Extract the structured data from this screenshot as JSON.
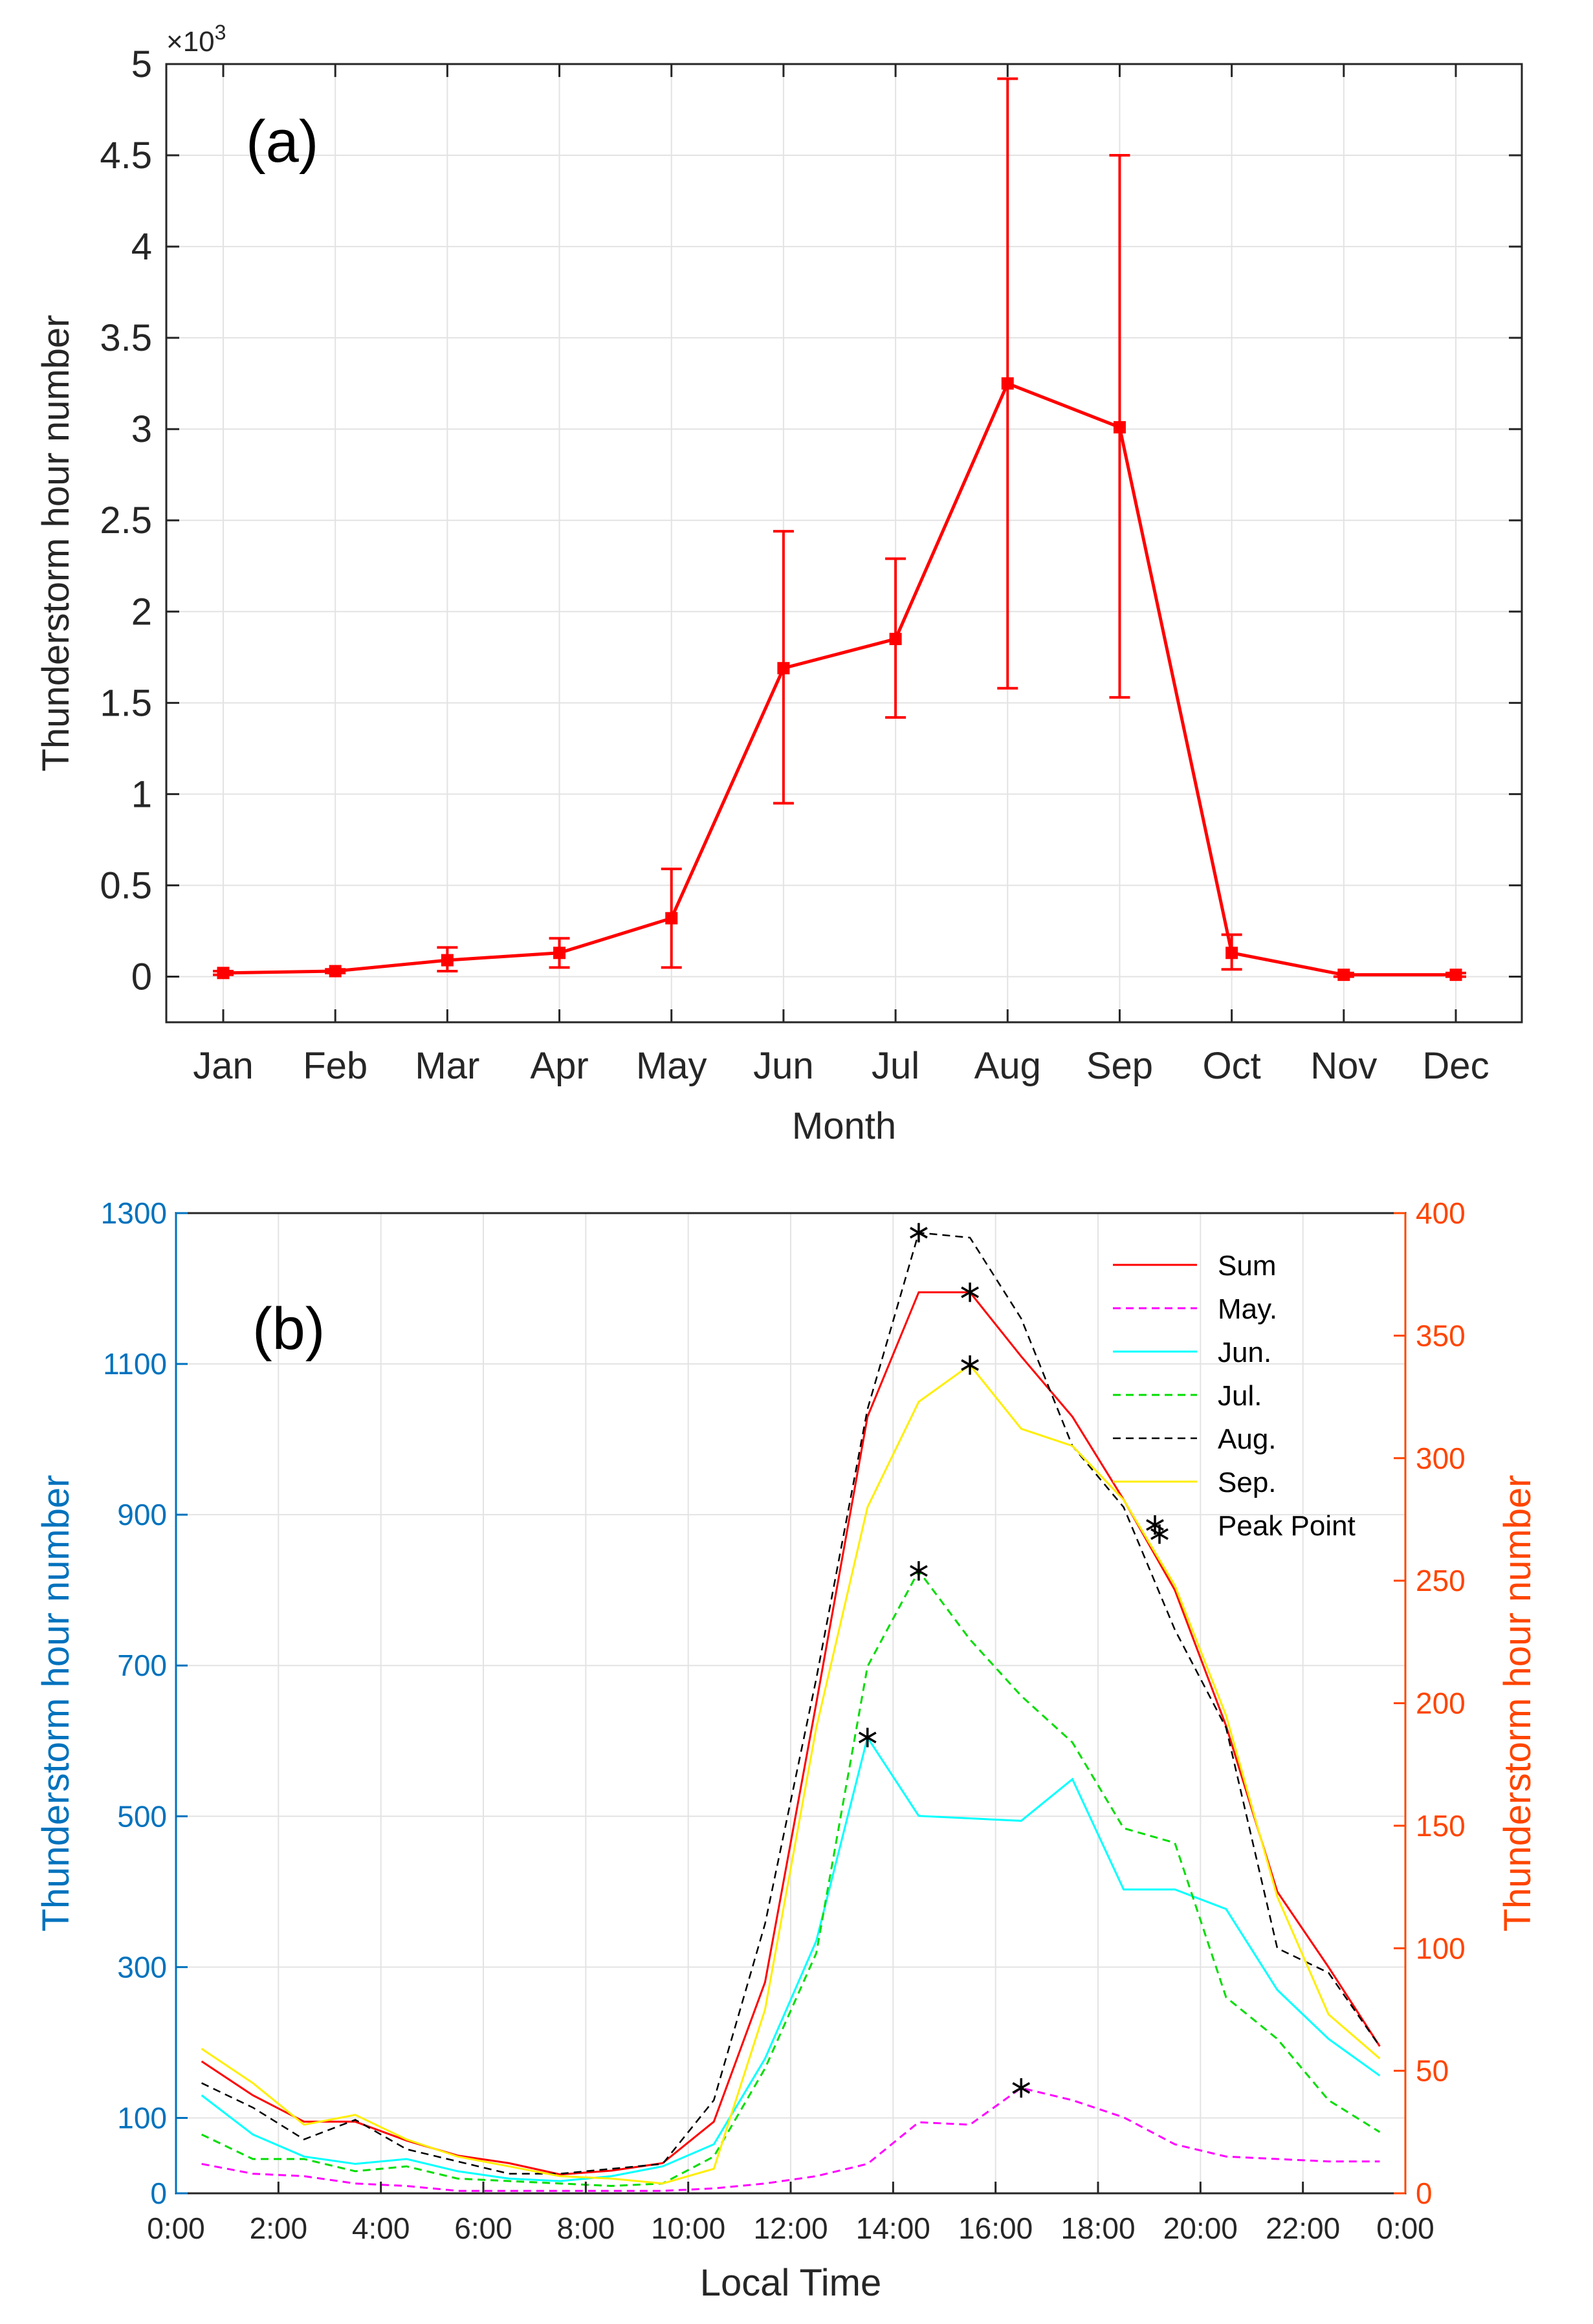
{
  "chart_data": [
    {
      "type": "line",
      "panel_label": "(a)",
      "xlabel": "Month",
      "ylabel": "Thunderstorm hour number",
      "y_multiplier_label": "×10",
      "y_multiplier_exp": "3",
      "categories": [
        "Jan",
        "Feb",
        "Mar",
        "Apr",
        "May",
        "Jun",
        "Jul",
        "Aug",
        "Sep",
        "Oct",
        "Nov",
        "Dec"
      ],
      "ylim": [
        -0.25,
        5
      ],
      "yticks": [
        0,
        0.5,
        1,
        1.5,
        2,
        2.5,
        3,
        3.5,
        4,
        4.5,
        5
      ],
      "ytick_labels": [
        "0",
        "0.5",
        "1",
        "1.5",
        "2",
        "2.5",
        "3",
        "3.5",
        "4",
        "4.5",
        "5"
      ],
      "grid": true,
      "series": [
        {
          "color": "#ff0000",
          "marker": "square",
          "values": [
            0.02,
            0.03,
            0.09,
            0.13,
            0.32,
            1.69,
            1.85,
            3.25,
            3.01,
            0.13,
            0.01,
            0.01
          ],
          "error_low": [
            0.01,
            0.02,
            0.03,
            0.05,
            0.05,
            0.95,
            1.42,
            1.58,
            1.53,
            0.04,
            0.0,
            0.0
          ],
          "error_high": [
            0.03,
            0.04,
            0.16,
            0.21,
            0.59,
            2.44,
            2.29,
            4.92,
            4.5,
            0.23,
            0.02,
            0.02
          ]
        }
      ]
    },
    {
      "type": "line",
      "panel_label": "(b)",
      "xlabel": "Local Time",
      "ylabel_left": "Thunderstorm hour number",
      "ylabel_right": "Thunderstorm hour number",
      "left_axis_color": "#0072bd",
      "right_axis_color": "#ff4500",
      "xlim": [
        0,
        24
      ],
      "xticks": [
        0,
        2,
        4,
        6,
        8,
        10,
        12,
        14,
        16,
        18,
        20,
        22,
        24
      ],
      "xtick_labels": [
        "0:00",
        "2:00",
        "4:00",
        "6:00",
        "8:00",
        "10:00",
        "12:00",
        "14:00",
        "16:00",
        "18:00",
        "20:00",
        "22:00",
        "0:00"
      ],
      "ylim_left": [
        0,
        1300
      ],
      "yticks_left": [
        0,
        100,
        300,
        500,
        700,
        900,
        1100,
        1300
      ],
      "ytick_labels_left": [
        "0",
        "100",
        "300",
        "500",
        "700",
        "900",
        "1100",
        "1300"
      ],
      "ylim_right": [
        0,
        400
      ],
      "yticks_right": [
        0,
        50,
        100,
        150,
        200,
        250,
        300,
        350,
        400
      ],
      "ytick_labels_right": [
        "0",
        "50",
        "100",
        "150",
        "200",
        "250",
        "300",
        "350",
        "400"
      ],
      "grid": true,
      "legend_position": "top-right",
      "x": [
        0.5,
        1.5,
        2.5,
        3.5,
        4.5,
        5.5,
        6.5,
        7.5,
        8.5,
        9.5,
        10.5,
        11.5,
        12.5,
        13.5,
        14.5,
        15.5,
        16.5,
        17.5,
        18.5,
        19.5,
        20.5,
        21.5,
        22.5,
        23.5
      ],
      "series": [
        {
          "name": "Sum",
          "axis": "left",
          "color": "#ff0000",
          "dash": "solid",
          "width": 3,
          "values": [
            175,
            130,
            95,
            95,
            70,
            50,
            40,
            25,
            30,
            40,
            95,
            280,
            650,
            1030,
            1195,
            1195,
            1110,
            1030,
            920,
            800,
            620,
            400,
            300,
            195
          ]
        },
        {
          "name": "May.",
          "axis": "right",
          "color": "#ff00ff",
          "dash": "dashed",
          "width": 3,
          "values": [
            12,
            8,
            7,
            4,
            3,
            1,
            1,
            1,
            1,
            1,
            2,
            4,
            7,
            12,
            29,
            28,
            43,
            38,
            31,
            20,
            15,
            14,
            13,
            13
          ]
        },
        {
          "name": "Jun.",
          "axis": "right",
          "color": "#00ffff",
          "dash": "solid",
          "width": 3,
          "values": [
            40,
            24,
            15,
            12,
            14,
            9,
            6,
            5,
            7,
            11,
            20,
            55,
            103,
            186,
            154,
            153,
            152,
            169,
            124,
            124,
            116,
            83,
            63,
            48
          ]
        },
        {
          "name": "Jul.",
          "axis": "right",
          "color": "#00dd00",
          "dash": "dashed",
          "width": 3,
          "values": [
            24,
            14,
            14,
            9,
            11,
            6,
            5,
            4,
            3,
            4,
            15,
            51,
            98,
            215,
            254,
            226,
            203,
            184,
            149,
            143,
            80,
            63,
            38,
            25
          ]
        },
        {
          "name": "Aug.",
          "axis": "right",
          "color": "#000000",
          "dash": "dashed",
          "width": 2.5,
          "values": [
            45,
            35,
            22,
            30,
            18,
            13,
            8,
            8,
            10,
            12,
            38,
            110,
            210,
            320,
            392,
            390,
            357,
            305,
            280,
            230,
            190,
            100,
            90,
            60
          ]
        },
        {
          "name": "Sep.",
          "axis": "right",
          "color": "#ffee00",
          "dash": "solid",
          "width": 3,
          "values": [
            59,
            45,
            28,
            32,
            22,
            15,
            11,
            7,
            6,
            4,
            10,
            75,
            190,
            280,
            323,
            338,
            312,
            305,
            283,
            248,
            195,
            121,
            73,
            55
          ]
        }
      ],
      "peak_points": {
        "name": "Peak Point",
        "color": "#000000",
        "points": [
          {
            "axis": "right",
            "x": 14.5,
            "y": 392
          },
          {
            "axis": "left",
            "x": 15.5,
            "y": 1195
          },
          {
            "axis": "right",
            "x": 15.5,
            "y": 338
          },
          {
            "axis": "right",
            "x": 14.5,
            "y": 254
          },
          {
            "axis": "right",
            "x": 13.5,
            "y": 186
          },
          {
            "axis": "right",
            "x": 16.5,
            "y": 43
          },
          {
            "axis": "right",
            "x": 19.2,
            "y": 269
          }
        ]
      }
    }
  ]
}
